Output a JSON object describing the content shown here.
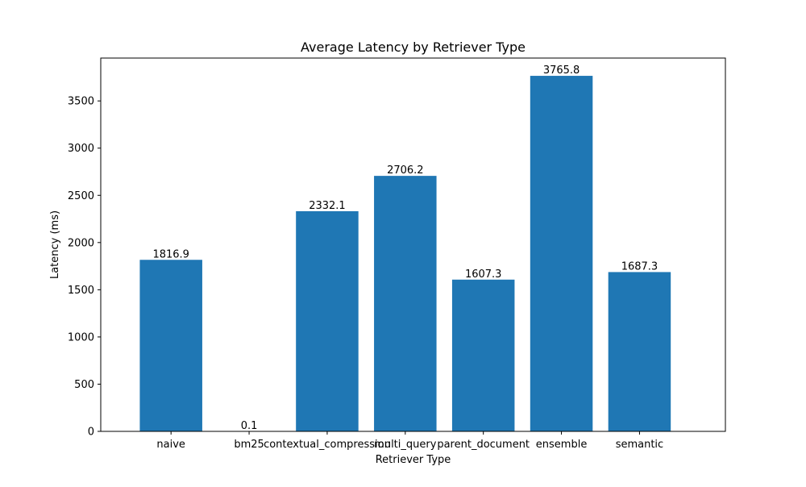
{
  "chart_data": {
    "type": "bar",
    "title": "Average Latency by Retriever Type",
    "xlabel": "Retriever Type",
    "ylabel": "Latency (ms)",
    "categories": [
      "naive",
      "bm25",
      "contextual_compression",
      "multi_query",
      "parent_document",
      "ensemble",
      "semantic"
    ],
    "values": [
      1816.9,
      0.1,
      2332.1,
      2706.2,
      1607.3,
      3765.8,
      1687.3
    ],
    "data_labels": [
      "1816.9",
      "0.1",
      "2332.1",
      "2706.2",
      "1607.3",
      "3765.8",
      "1687.3"
    ],
    "ylim": [
      0,
      3954.1
    ],
    "yticks": [
      0,
      500,
      1000,
      1500,
      2000,
      2500,
      3000,
      3500
    ],
    "ytick_labels": [
      "0",
      "500",
      "1000",
      "1500",
      "2000",
      "2500",
      "3000",
      "3500"
    ],
    "grid": false,
    "legend": "none",
    "colors": {
      "bar": "#1f77b4",
      "axes": "#000000",
      "background": "#ffffff"
    }
  }
}
